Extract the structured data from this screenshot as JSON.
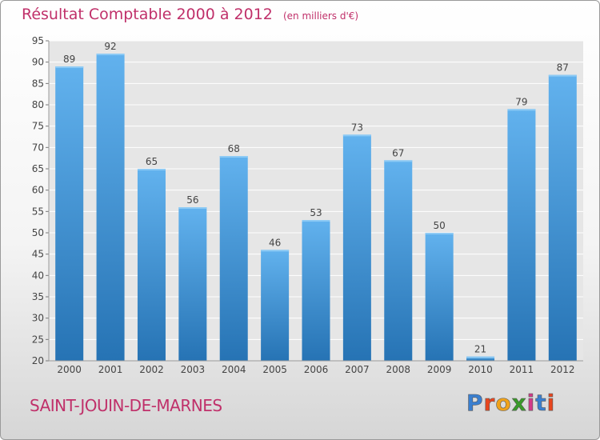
{
  "chart_data": {
    "type": "bar",
    "title": "Résultat Comptable 2000 à 2012",
    "subtitle": "(en milliers d'€)",
    "categories": [
      "2000",
      "2001",
      "2002",
      "2003",
      "2004",
      "2005",
      "2006",
      "2007",
      "2008",
      "2009",
      "2010",
      "2011",
      "2012"
    ],
    "values": [
      89,
      92,
      65,
      56,
      68,
      46,
      53,
      73,
      67,
      50,
      21,
      79,
      87
    ],
    "ylim": [
      20,
      95
    ],
    "yticks": [
      20,
      25,
      30,
      35,
      40,
      45,
      50,
      55,
      60,
      65,
      70,
      75,
      80,
      85,
      90,
      95
    ],
    "grid": true,
    "bar_color": "#3d8fd4"
  },
  "commune": "SAINT-JOUIN-DE-MARNES",
  "logo": {
    "text": "Proxiti",
    "letter_colors": [
      "#3a7fd0",
      "#e8461e",
      "#f0a21a",
      "#3a9a2a",
      "#d33a8a",
      "#3a7fd0",
      "#e8461e"
    ]
  }
}
